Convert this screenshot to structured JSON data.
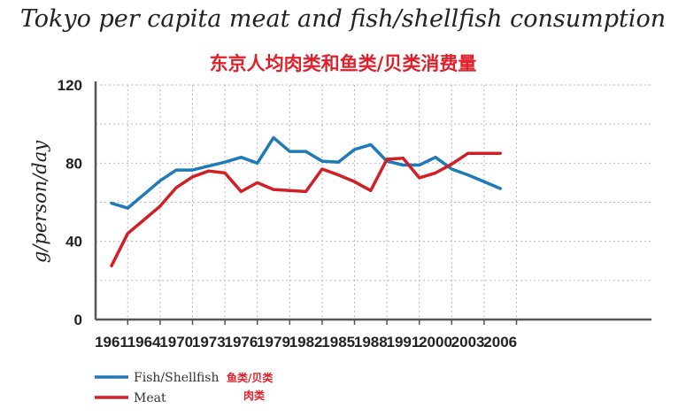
{
  "chart_data": {
    "type": "line",
    "title": "Tokyo per capita meat and fish/shellfish consumption",
    "subtitle": "东京人均肉类和鱼类/贝类消费量",
    "ylabel": "g/person/day",
    "ylim": [
      0,
      120
    ],
    "yticks": [
      0,
      40,
      80,
      120
    ],
    "categories": [
      "1961",
      "1964",
      "1970",
      "1973",
      "1976",
      "1979",
      "1982",
      "1985",
      "1988",
      "1991",
      "2000",
      "2003",
      "2006"
    ],
    "x": [
      1961,
      1962.5,
      1964,
      1967,
      1970,
      1971.5,
      1973,
      1974.5,
      1976,
      1977.5,
      1979,
      1980.5,
      1982,
      1983.5,
      1985,
      1986.5,
      1988,
      1989.5,
      1991,
      1995.5,
      2000,
      2001.5,
      2003,
      2004.5,
      2006
    ],
    "grid": true,
    "legend_position": "bottom-left",
    "series": [
      {
        "name": "Fish/Shellfish",
        "name_cn": "鱼类/贝类",
        "color": "#1f7ab8",
        "values": [
          59.5,
          57,
          64,
          71,
          76.5,
          76.5,
          78.5,
          80.5,
          83,
          80,
          93,
          86,
          86,
          81,
          80.5,
          87,
          89.5,
          81,
          79,
          79,
          83,
          77,
          74,
          70.5,
          67
        ]
      },
      {
        "name": "Meat",
        "name_cn": "肉类",
        "color": "#d21f26",
        "values": [
          27.5,
          44,
          51,
          58,
          67.5,
          73,
          76,
          75,
          65.5,
          70,
          66.5,
          66,
          65.5,
          77,
          74,
          70.5,
          66,
          82,
          82.5,
          72.5,
          75,
          79.5,
          85,
          85,
          85
        ]
      }
    ]
  }
}
